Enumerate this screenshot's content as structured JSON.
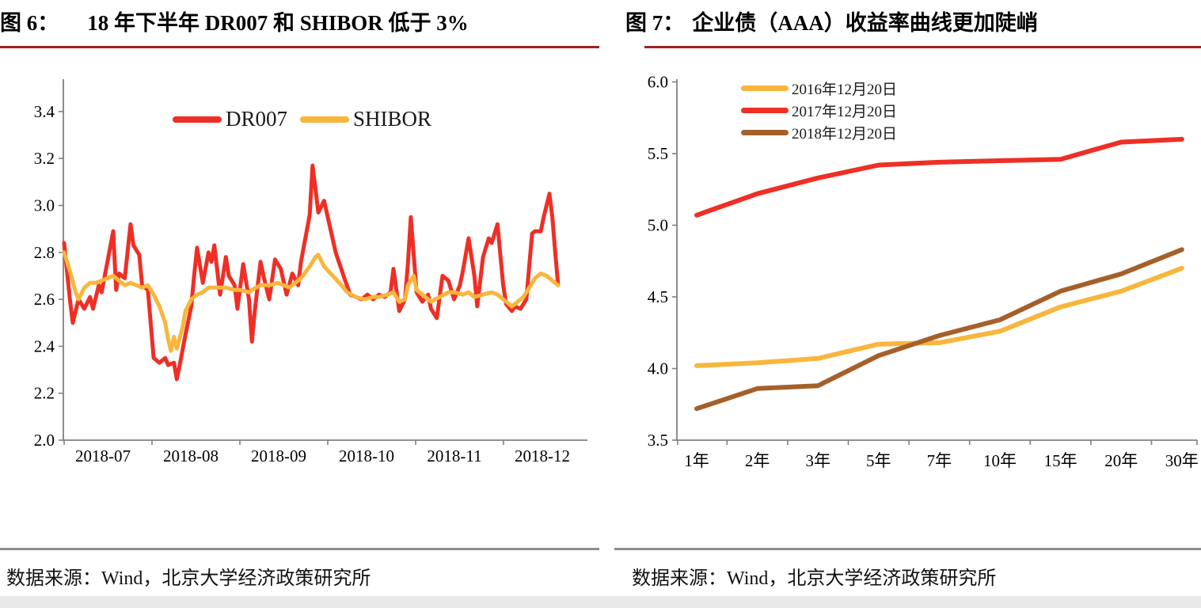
{
  "figure6": {
    "label": "图 6：",
    "title": "18 年下半年 DR007 和 SHIBOR 低于 3%",
    "source": "数据来源：Wind，北京大学经济政策研究所"
  },
  "figure7": {
    "label": "图 7：",
    "title": "企业债（AAA）收益率曲线更加陡峭",
    "source": "数据来源：Wind，北京大学经济政策研究所"
  },
  "colors": {
    "line_red": "#EE2F26",
    "line_gold": "#F8B63C",
    "line_brown": "#A5602A",
    "title_rule": "#9E2227",
    "source_rule": "#8C8C8C",
    "axis": "#808080",
    "bottom_band": "#E9E9E9",
    "tick_text": "#000000"
  },
  "chart_data": [
    {
      "type": "line",
      "title": "18 年下半年 DR007 和 SHIBOR 低于 3%",
      "xlabel": "",
      "ylabel": "",
      "x_unit": "days since 2018-07-01",
      "x_tick_labels": [
        "2018-07",
        "2018-08",
        "2018-09",
        "2018-10",
        "2018-11",
        "2018-12"
      ],
      "ylim": [
        2.0,
        3.55
      ],
      "yticks": [
        2.0,
        2.2,
        2.4,
        2.6,
        2.8,
        3.0,
        3.2,
        3.4
      ],
      "grid": false,
      "legend_position": "top-center-inside",
      "series": [
        {
          "name": "DR007",
          "color": "#EE2F26",
          "points": [
            [
              0,
              2.84
            ],
            [
              2,
              2.6
            ],
            [
              3,
              2.5
            ],
            [
              5,
              2.6
            ],
            [
              7,
              2.56
            ],
            [
              9,
              2.61
            ],
            [
              10,
              2.56
            ],
            [
              12,
              2.66
            ],
            [
              13,
              2.63
            ],
            [
              15,
              2.76
            ],
            [
              17,
              2.89
            ],
            [
              18,
              2.64
            ],
            [
              19,
              2.71
            ],
            [
              21,
              2.69
            ],
            [
              23,
              2.92
            ],
            [
              24,
              2.83
            ],
            [
              26,
              2.79
            ],
            [
              27,
              2.66
            ],
            [
              29,
              2.64
            ],
            [
              31,
              2.35
            ],
            [
              33,
              2.33
            ],
            [
              35,
              2.35
            ],
            [
              36,
              2.32
            ],
            [
              38,
              2.33
            ],
            [
              39,
              2.26
            ],
            [
              40,
              2.32
            ],
            [
              42,
              2.45
            ],
            [
              44,
              2.57
            ],
            [
              45,
              2.7
            ],
            [
              46,
              2.82
            ],
            [
              48,
              2.67
            ],
            [
              50,
              2.8
            ],
            [
              51,
              2.76
            ],
            [
              52,
              2.83
            ],
            [
              54,
              2.62
            ],
            [
              56,
              2.78
            ],
            [
              57,
              2.7
            ],
            [
              59,
              2.66
            ],
            [
              60,
              2.56
            ],
            [
              62,
              2.75
            ],
            [
              64,
              2.6
            ],
            [
              65,
              2.42
            ],
            [
              66,
              2.55
            ],
            [
              68,
              2.76
            ],
            [
              69,
              2.7
            ],
            [
              71,
              2.6
            ],
            [
              73,
              2.77
            ],
            [
              75,
              2.73
            ],
            [
              77,
              2.62
            ],
            [
              79,
              2.71
            ],
            [
              81,
              2.66
            ],
            [
              82,
              2.76
            ],
            [
              85,
              2.96
            ],
            [
              86,
              3.17
            ],
            [
              88,
              2.97
            ],
            [
              90,
              3.02
            ],
            [
              92,
              2.91
            ],
            [
              94,
              2.8
            ],
            [
              97,
              2.69
            ],
            [
              99,
              2.62
            ],
            [
              101,
              2.61
            ],
            [
              103,
              2.6
            ],
            [
              105,
              2.62
            ],
            [
              107,
              2.6
            ],
            [
              109,
              2.62
            ],
            [
              111,
              2.61
            ],
            [
              113,
              2.63
            ],
            [
              114,
              2.73
            ],
            [
              116,
              2.55
            ],
            [
              118,
              2.6
            ],
            [
              119,
              2.75
            ],
            [
              120,
              2.95
            ],
            [
              122,
              2.63
            ],
            [
              124,
              2.59
            ],
            [
              126,
              2.62
            ],
            [
              127,
              2.56
            ],
            [
              129,
              2.52
            ],
            [
              131,
              2.7
            ],
            [
              133,
              2.68
            ],
            [
              135,
              2.6
            ],
            [
              137,
              2.66
            ],
            [
              138,
              2.72
            ],
            [
              140,
              2.86
            ],
            [
              142,
              2.7
            ],
            [
              143,
              2.57
            ],
            [
              145,
              2.78
            ],
            [
              147,
              2.86
            ],
            [
              148,
              2.84
            ],
            [
              150,
              2.92
            ],
            [
              152,
              2.66
            ],
            [
              153,
              2.58
            ],
            [
              155,
              2.55
            ],
            [
              156,
              2.57
            ],
            [
              158,
              2.56
            ],
            [
              160,
              2.6
            ],
            [
              162,
              2.88
            ],
            [
              163,
              2.89
            ],
            [
              165,
              2.89
            ],
            [
              166,
              2.95
            ],
            [
              168,
              3.05
            ],
            [
              169,
              2.95
            ],
            [
              170,
              2.8
            ],
            [
              171,
              2.66
            ]
          ]
        },
        {
          "name": "SHIBOR",
          "color": "#F8B63C",
          "points": [
            [
              0,
              2.8
            ],
            [
              2,
              2.72
            ],
            [
              4,
              2.63
            ],
            [
              5,
              2.6
            ],
            [
              7,
              2.65
            ],
            [
              9,
              2.67
            ],
            [
              11,
              2.67
            ],
            [
              13,
              2.68
            ],
            [
              15,
              2.69
            ],
            [
              17,
              2.7
            ],
            [
              19,
              2.68
            ],
            [
              21,
              2.66
            ],
            [
              23,
              2.67
            ],
            [
              25,
              2.66
            ],
            [
              27,
              2.65
            ],
            [
              29,
              2.66
            ],
            [
              31,
              2.62
            ],
            [
              33,
              2.57
            ],
            [
              35,
              2.5
            ],
            [
              36,
              2.43
            ],
            [
              37,
              2.38
            ],
            [
              38,
              2.44
            ],
            [
              39,
              2.39
            ],
            [
              41,
              2.48
            ],
            [
              42,
              2.55
            ],
            [
              44,
              2.6
            ],
            [
              46,
              2.62
            ],
            [
              48,
              2.63
            ],
            [
              50,
              2.65
            ],
            [
              53,
              2.65
            ],
            [
              56,
              2.65
            ],
            [
              59,
              2.64
            ],
            [
              61,
              2.64
            ],
            [
              64,
              2.63
            ],
            [
              65,
              2.64
            ],
            [
              68,
              2.66
            ],
            [
              71,
              2.66
            ],
            [
              74,
              2.67
            ],
            [
              76,
              2.66
            ],
            [
              78,
              2.65
            ],
            [
              80,
              2.67
            ],
            [
              82,
              2.69
            ],
            [
              85,
              2.74
            ],
            [
              87,
              2.78
            ],
            [
              88,
              2.79
            ],
            [
              90,
              2.74
            ],
            [
              93,
              2.7
            ],
            [
              96,
              2.66
            ],
            [
              98,
              2.63
            ],
            [
              101,
              2.61
            ],
            [
              104,
              2.6
            ],
            [
              107,
              2.61
            ],
            [
              109,
              2.61
            ],
            [
              112,
              2.62
            ],
            [
              114,
              2.63
            ],
            [
              116,
              2.59
            ],
            [
              118,
              2.6
            ],
            [
              119,
              2.66
            ],
            [
              121,
              2.7
            ],
            [
              122,
              2.64
            ],
            [
              125,
              2.61
            ],
            [
              127,
              2.59
            ],
            [
              130,
              2.61
            ],
            [
              133,
              2.63
            ],
            [
              135,
              2.63
            ],
            [
              138,
              2.62
            ],
            [
              140,
              2.63
            ],
            [
              142,
              2.61
            ],
            [
              145,
              2.62
            ],
            [
              148,
              2.63
            ],
            [
              150,
              2.62
            ],
            [
              153,
              2.59
            ],
            [
              155,
              2.57
            ],
            [
              157,
              2.59
            ],
            [
              159,
              2.61
            ],
            [
              161,
              2.65
            ],
            [
              163,
              2.69
            ],
            [
              165,
              2.71
            ],
            [
              167,
              2.7
            ],
            [
              169,
              2.68
            ],
            [
              171,
              2.66
            ]
          ]
        }
      ]
    },
    {
      "type": "line",
      "title": "企业债（AAA）收益率曲线更加陡峭",
      "xlabel": "",
      "ylabel": "",
      "categories": [
        "1年",
        "2年",
        "3年",
        "5年",
        "7年",
        "10年",
        "15年",
        "20年",
        "30年"
      ],
      "ylim": [
        3.5,
        6.0
      ],
      "yticks": [
        3.5,
        4.0,
        4.5,
        5.0,
        5.5,
        6.0
      ],
      "grid": false,
      "legend_position": "top-left-inside",
      "series": [
        {
          "name": "2016年12月20日",
          "color": "#F8B63C",
          "values": [
            4.02,
            4.04,
            4.07,
            4.17,
            4.18,
            4.26,
            4.43,
            4.54,
            4.7
          ]
        },
        {
          "name": "2017年12月20日",
          "color": "#EE2F26",
          "values": [
            5.07,
            5.22,
            5.33,
            5.42,
            5.44,
            5.45,
            5.46,
            5.58,
            5.6
          ]
        },
        {
          "name": "2018年12月20日",
          "color": "#A5602A",
          "values": [
            3.72,
            3.86,
            3.88,
            4.09,
            4.23,
            4.34,
            4.54,
            4.66,
            4.83
          ]
        }
      ]
    }
  ]
}
